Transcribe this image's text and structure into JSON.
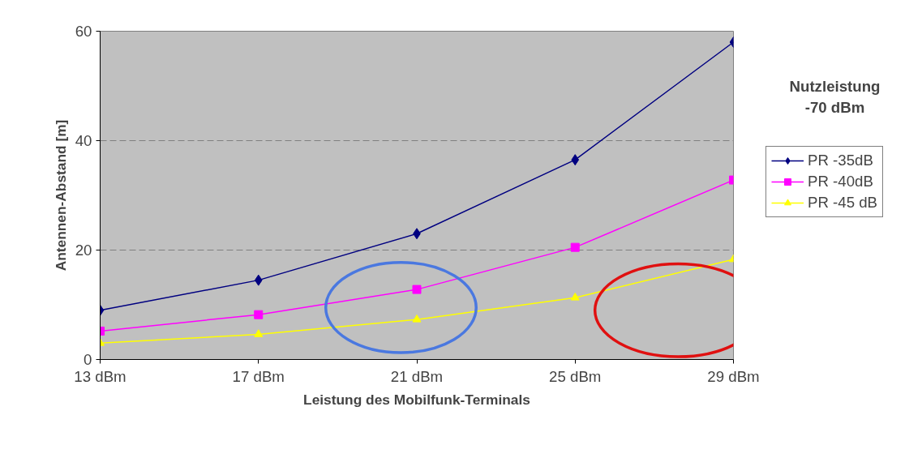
{
  "chart_data": {
    "type": "line",
    "xlabel": "Leistung des Mobilfunk-Terminals",
    "ylabel": "Antennen-Abstand [m]",
    "categories": [
      "13 dBm",
      "17 dBm",
      "21 dBm",
      "25 dBm",
      "29 dBm"
    ],
    "series": [
      {
        "name": "PR -35dB",
        "color": "#000080",
        "marker": "diamond",
        "values": [
          9,
          14.5,
          23,
          36.5,
          58
        ]
      },
      {
        "name": "PR -40dB",
        "color": "#ff00ff",
        "marker": "square",
        "values": [
          5.2,
          8.2,
          12.8,
          20.5,
          32.8
        ]
      },
      {
        "name": "PR -45 dB",
        "color": "#ffff00",
        "marker": "triangle",
        "values": [
          3,
          4.6,
          7.3,
          11.3,
          18.3
        ]
      }
    ],
    "ylim": [
      0,
      60
    ],
    "yticks": [
      0,
      20,
      40,
      60
    ],
    "grid": "y",
    "legend": "right",
    "annotations": [
      "Nutzleistung\n-70 dBm"
    ]
  }
}
